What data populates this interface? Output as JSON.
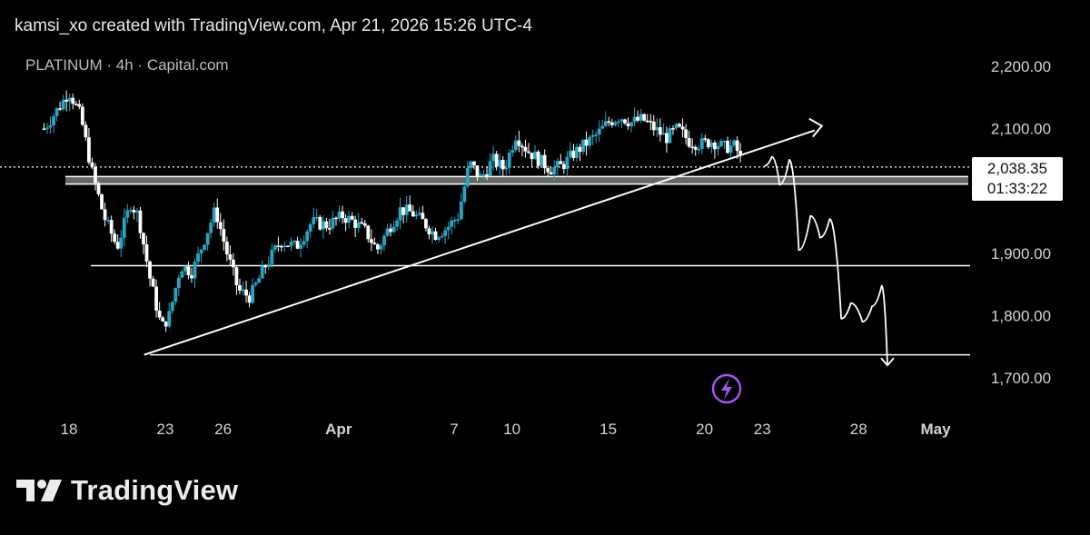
{
  "attribution": "kamsi_xo created with TradingView.com, Apr 21, 2026 15:26 UTC-4",
  "symbol_line": "PLATINUM · 4h · Capital.com",
  "brand": {
    "name": "TradingView",
    "logo": "tradingview-logo-icon"
  },
  "price_label": {
    "price": "2,038.35",
    "countdown": "01:33:22"
  },
  "colors": {
    "up": "#26a6c4",
    "down": "#ffffff",
    "background": "#000000",
    "lines": "#ffffff",
    "lightning": "#a855f7"
  },
  "chart_data": {
    "type": "candlestick",
    "title": "PLATINUM · 4h · Capital.com",
    "timeframe": "4h",
    "ylim": [
      1660,
      2240
    ],
    "xlim_days": [
      16.7,
      46.5
    ],
    "y_ticks": [
      {
        "value": 2200,
        "label": "2,200.00"
      },
      {
        "value": 2100,
        "label": "2,100.00"
      },
      {
        "value": 1900,
        "label": "1,900.00"
      },
      {
        "value": 1800,
        "label": "1,800.00"
      },
      {
        "value": 1700,
        "label": "1,700.00"
      }
    ],
    "x_ticks": [
      {
        "day": 18,
        "label": "18",
        "bold": false
      },
      {
        "day": 23,
        "label": "23",
        "bold": false
      },
      {
        "day": 26,
        "label": "26",
        "bold": false
      },
      {
        "day": 32,
        "label": "Apr",
        "bold": true
      },
      {
        "day": 38,
        "label": "7",
        "bold": false
      },
      {
        "day": 41,
        "label": "10",
        "bold": false
      },
      {
        "day": 46,
        "label": "15",
        "bold": false
      },
      {
        "day": 51,
        "label": "20",
        "bold": false
      },
      {
        "day": 54,
        "label": "23",
        "bold": false
      },
      {
        "day": 59,
        "label": "28",
        "bold": false
      },
      {
        "day": 63,
        "label": "May",
        "bold": true
      }
    ],
    "current_price": 2038.35,
    "horizontal_levels": [
      {
        "name": "support-zone-band",
        "from": 2011,
        "to": 2023
      },
      {
        "name": "support-level-1880",
        "value": 1880
      },
      {
        "name": "support-level-1737",
        "value": 1737
      }
    ],
    "trendline": {
      "start": {
        "day": 21.9,
        "price": 1737
      },
      "end": {
        "day": 57,
        "price": 2100
      }
    },
    "projected_path": [
      [
        54.1,
        2040
      ],
      [
        54.5,
        2055
      ],
      [
        54.9,
        2010
      ],
      [
        55.4,
        2050
      ],
      [
        55.9,
        1905
      ],
      [
        56.5,
        1960
      ],
      [
        57,
        1925
      ],
      [
        57.5,
        1955
      ],
      [
        58.1,
        1795
      ],
      [
        58.6,
        1820
      ],
      [
        59.2,
        1790
      ],
      [
        59.7,
        1815
      ],
      [
        60.2,
        1848
      ],
      [
        60.5,
        1720
      ]
    ],
    "candles_anchor": [
      [
        16.7,
        2100
      ],
      [
        17.5,
        2135
      ],
      [
        18,
        2160
      ],
      [
        18.6,
        2120
      ],
      [
        19.2,
        2030
      ],
      [
        19.8,
        1960
      ],
      [
        20.5,
        1910
      ],
      [
        21.2,
        1980
      ],
      [
        21.6,
        1960
      ],
      [
        22.2,
        1860
      ],
      [
        22.8,
        1780
      ],
      [
        23.2,
        1800
      ],
      [
        23.8,
        1880
      ],
      [
        24.4,
        1870
      ],
      [
        25,
        1920
      ],
      [
        25.6,
        1970
      ],
      [
        26.2,
        1900
      ],
      [
        26.8,
        1840
      ],
      [
        27.4,
        1830
      ],
      [
        28.2,
        1880
      ],
      [
        29,
        1920
      ],
      [
        29.8,
        1910
      ],
      [
        30.6,
        1950
      ],
      [
        31.4,
        1945
      ],
      [
        32.2,
        1960
      ],
      [
        32.8,
        1950
      ],
      [
        33.4,
        1935
      ],
      [
        34,
        1905
      ],
      [
        34.6,
        1940
      ],
      [
        35.2,
        1970
      ],
      [
        35.8,
        1965
      ],
      [
        36.4,
        1950
      ],
      [
        37,
        1930
      ],
      [
        37.6,
        1940
      ],
      [
        38.2,
        1960
      ],
      [
        38.8,
        2045
      ],
      [
        39.4,
        2020
      ],
      [
        40,
        2050
      ],
      [
        40.6,
        2035
      ],
      [
        41.2,
        2090
      ],
      [
        41.8,
        2065
      ],
      [
        42.4,
        2050
      ],
      [
        43,
        2035
      ],
      [
        43.6,
        2040
      ],
      [
        44.2,
        2060
      ],
      [
        44.8,
        2075
      ],
      [
        45.4,
        2090
      ],
      [
        46,
        2110
      ],
      [
        46.6,
        2120
      ],
      [
        47.2,
        2110
      ],
      [
        47.8,
        2115
      ],
      [
        48.4,
        2100
      ],
      [
        49,
        2085
      ],
      [
        49.6,
        2100
      ],
      [
        50.2,
        2080
      ],
      [
        50.8,
        2075
      ],
      [
        51.4,
        2080
      ],
      [
        52,
        2070
      ],
      [
        52.6,
        2072
      ],
      [
        53,
        2040
      ]
    ]
  }
}
